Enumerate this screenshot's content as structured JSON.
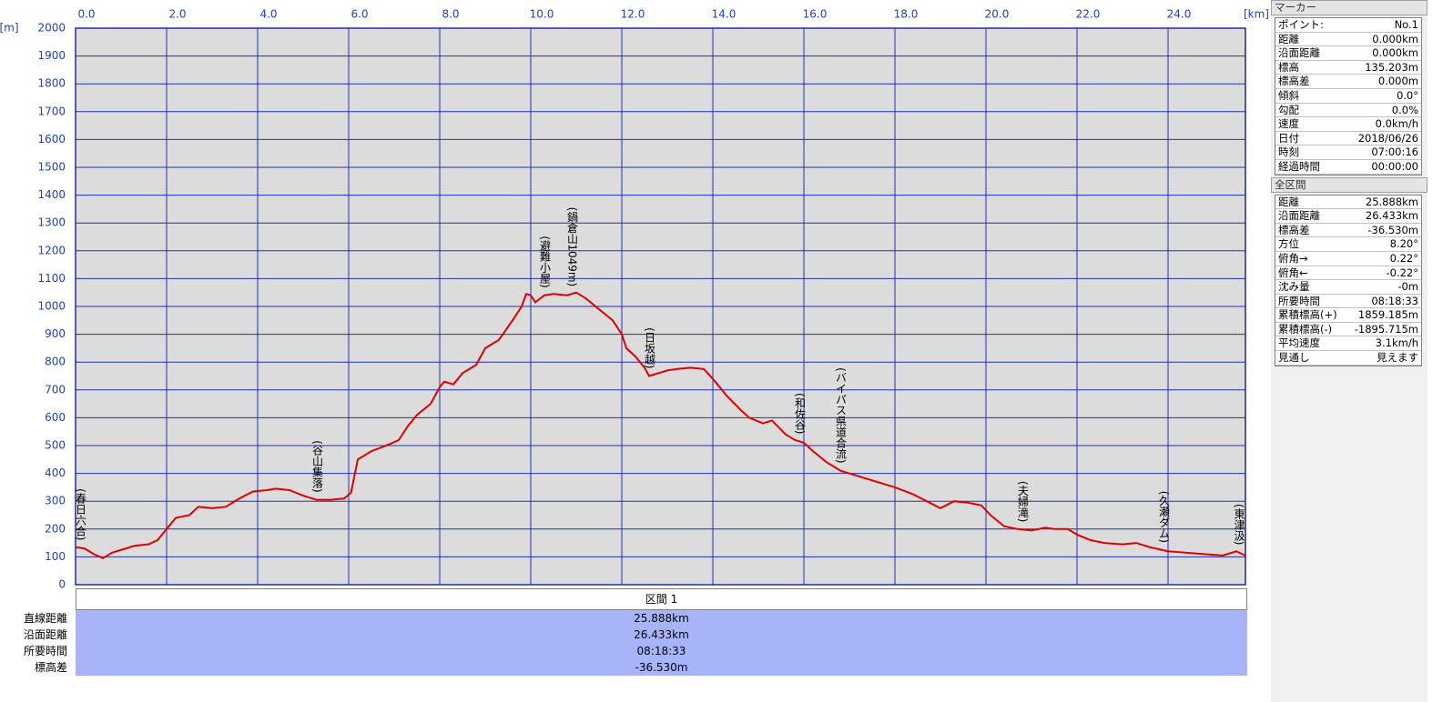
{
  "chart_data": {
    "type": "line",
    "x_unit": "[km]",
    "y_unit": "[m]",
    "xlim": [
      0,
      25.7
    ],
    "ylim": [
      0,
      2000
    ],
    "xticks": [
      {
        "value": 0,
        "label": "0.0"
      },
      {
        "value": 2,
        "label": "2.0"
      },
      {
        "value": 4,
        "label": "4.0"
      },
      {
        "value": 6,
        "label": "6.0"
      },
      {
        "value": 8,
        "label": "8.0"
      },
      {
        "value": 10,
        "label": "10.0"
      },
      {
        "value": 12,
        "label": "12.0"
      },
      {
        "value": 14,
        "label": "14.0"
      },
      {
        "value": 16,
        "label": "16.0"
      },
      {
        "value": 18,
        "label": "18.0"
      },
      {
        "value": 20,
        "label": "20.0"
      },
      {
        "value": 22,
        "label": "22.0"
      },
      {
        "value": 24,
        "label": "24.0"
      }
    ],
    "yticks": [
      0,
      100,
      200,
      300,
      400,
      500,
      600,
      700,
      800,
      900,
      1000,
      1100,
      1200,
      1300,
      1400,
      1500,
      1600,
      1700,
      1800,
      1900,
      2000
    ],
    "grid": true,
    "series": [
      {
        "color": "#e00000",
        "x": [
          0,
          0.2,
          0.4,
          0.6,
          0.8,
          1.0,
          1.3,
          1.6,
          1.8,
          2.0,
          2.2,
          2.5,
          2.7,
          3.0,
          3.3,
          3.6,
          3.9,
          4.2,
          4.4,
          4.7,
          5.0,
          5.3,
          5.6,
          5.9,
          6.05,
          6.2,
          6.5,
          6.9,
          7.1,
          7.3,
          7.5,
          7.8,
          8.0,
          8.1,
          8.3,
          8.5,
          8.8,
          9.0,
          9.3,
          9.6,
          9.8,
          9.9,
          10.0,
          10.1,
          10.3,
          10.5,
          10.8,
          11.0,
          11.2,
          11.5,
          11.8,
          12.0,
          12.1,
          12.3,
          12.5,
          12.6,
          12.8,
          13.0,
          13.2,
          13.5,
          13.8,
          14.0,
          14.3,
          14.6,
          14.8,
          15.1,
          15.3,
          15.6,
          15.8,
          16.0,
          16.2,
          16.5,
          16.8,
          17.2,
          17.6,
          18.0,
          18.4,
          18.7,
          19.0,
          19.3,
          19.6,
          19.9,
          20.1,
          20.4,
          20.7,
          21.0,
          21.3,
          21.5,
          21.8,
          22.0,
          22.3,
          22.6,
          23.0,
          23.3,
          23.6,
          24.0,
          24.4,
          24.8,
          25.2,
          25.5,
          25.7
        ],
        "values": [
          135,
          130,
          110,
          95,
          115,
          125,
          140,
          145,
          160,
          200,
          240,
          250,
          280,
          275,
          280,
          310,
          335,
          340,
          345,
          340,
          320,
          305,
          305,
          310,
          330,
          450,
          480,
          505,
          520,
          570,
          610,
          650,
          710,
          730,
          720,
          760,
          790,
          850,
          880,
          950,
          1000,
          1045,
          1040,
          1015,
          1040,
          1045,
          1040,
          1050,
          1030,
          990,
          950,
          900,
          850,
          820,
          780,
          750,
          760,
          770,
          775,
          780,
          775,
          740,
          680,
          630,
          600,
          580,
          590,
          540,
          520,
          510,
          480,
          440,
          410,
          390,
          370,
          350,
          325,
          300,
          275,
          300,
          295,
          285,
          250,
          210,
          200,
          195,
          205,
          200,
          200,
          180,
          160,
          150,
          145,
          150,
          135,
          120,
          115,
          110,
          105,
          120,
          105
        ]
      }
    ],
    "annotations": [
      {
        "text": "(春日六合)",
        "x": 0.1
      },
      {
        "text": "(谷山集落)",
        "x": 5.3
      },
      {
        "text": "(避難小屋)",
        "x": 10.3
      },
      {
        "text": "(鍋倉山1049m)",
        "x": 10.9
      },
      {
        "text": "(日坂越)",
        "x": 12.6
      },
      {
        "text": "(和佐谷)",
        "x": 15.9
      },
      {
        "text": "(バイパス県道合流)",
        "x": 16.8
      },
      {
        "text": "(夫婦滝)",
        "x": 20.8
      },
      {
        "text": "(久瀬ダム)",
        "x": 23.9
      },
      {
        "text": "(東津汲)",
        "x": 25.55
      }
    ]
  },
  "section_table": {
    "header": "区間 1",
    "rows": [
      [
        "直線距離",
        "25.888km"
      ],
      [
        "沿面距離",
        "26.433km"
      ],
      [
        "所要時間",
        "08:18:33"
      ],
      [
        "標高差",
        "-36.530m"
      ]
    ]
  },
  "marker_panel": {
    "title": "マーカー",
    "rows": [
      [
        "ポイント:",
        "No.1"
      ],
      [
        "距離",
        "0.000km"
      ],
      [
        "沿面距離",
        "0.000km"
      ],
      [
        "標高",
        "135.203m"
      ],
      [
        "標高差",
        "0.000m"
      ],
      [
        "傾斜",
        "0.0°"
      ],
      [
        "勾配",
        "0.0%"
      ],
      [
        "速度",
        "0.0km/h"
      ],
      [
        "日付",
        "2018/06/26"
      ],
      [
        "時刻",
        "07:00:16"
      ],
      [
        "経過時間",
        "00:00:00"
      ]
    ]
  },
  "total_panel": {
    "title": "全区間",
    "rows": [
      [
        "距離",
        "25.888km"
      ],
      [
        "沿面距離",
        "26.433km"
      ],
      [
        "標高差",
        "-36.530m"
      ],
      [
        "方位",
        "8.20°"
      ],
      [
        "俯角→",
        "0.22°"
      ],
      [
        "俯角←",
        "-0.22°"
      ],
      [
        "沈み量",
        "-0m"
      ],
      [
        "所要時間",
        "08:18:33"
      ],
      [
        "累積標高(+)",
        "1859.185m"
      ],
      [
        "累積標高(-)",
        "-1895.715m"
      ],
      [
        "平均速度",
        "3.1km/h"
      ],
      [
        "見通し",
        "見えます"
      ]
    ]
  }
}
